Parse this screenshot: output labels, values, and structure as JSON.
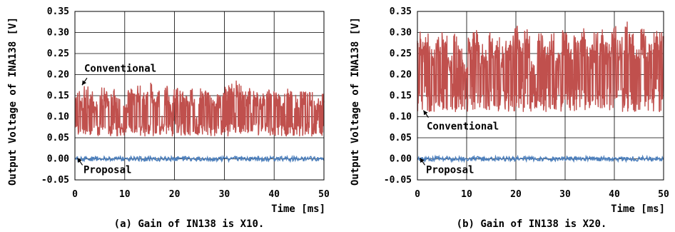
{
  "chart_data": [
    {
      "type": "line",
      "caption": "(a) Gain of IN138 is X10.",
      "xlabel": "Time [ms]",
      "ylabel": "Output Voltage of INA138 [V]",
      "xlim": [
        0,
        50
      ],
      "ylim": [
        -0.05,
        0.35
      ],
      "xticks": [
        "0",
        "10",
        "20",
        "30",
        "40",
        "50"
      ],
      "yticks": [
        "0.35",
        "0.30",
        "0.25",
        "0.20",
        "0.15",
        "0.10",
        "0.05",
        "0.00",
        "-0.05"
      ],
      "grid": true,
      "annotations": [
        "Conventional",
        "Proposal"
      ],
      "series": [
        {
          "name": "Conventional",
          "color": "#c0504d",
          "summary": {
            "baseline": 0.07,
            "min": 0.05,
            "max": 0.185
          },
          "peaks": [
            [
              0.4,
              0.17
            ],
            [
              1.5,
              0.15
            ],
            [
              2.1,
              0.175
            ],
            [
              3.2,
              0.16
            ],
            [
              4.0,
              0.14
            ],
            [
              5.6,
              0.17
            ],
            [
              6.3,
              0.16
            ],
            [
              7.8,
              0.165
            ],
            [
              8.5,
              0.15
            ],
            [
              10.2,
              0.13
            ],
            [
              11.1,
              0.17
            ],
            [
              11.9,
              0.16
            ],
            [
              12.6,
              0.175
            ],
            [
              14.1,
              0.16
            ],
            [
              15.7,
              0.18
            ],
            [
              16.4,
              0.165
            ],
            [
              18.5,
              0.175
            ],
            [
              19.3,
              0.14
            ],
            [
              20.2,
              0.17
            ],
            [
              21.6,
              0.165
            ],
            [
              22.8,
              0.155
            ],
            [
              23.5,
              0.17
            ],
            [
              25.4,
              0.17
            ],
            [
              26.6,
              0.165
            ],
            [
              27.9,
              0.15
            ],
            [
              28.8,
              0.16
            ],
            [
              30.2,
              0.17
            ],
            [
              31.4,
              0.18
            ],
            [
              32.9,
              0.185
            ],
            [
              34.0,
              0.16
            ],
            [
              34.7,
              0.17
            ],
            [
              36.3,
              0.165
            ],
            [
              37.6,
              0.155
            ],
            [
              38.9,
              0.17
            ],
            [
              40.4,
              0.16
            ],
            [
              41.6,
              0.155
            ],
            [
              43.1,
              0.17
            ],
            [
              44.5,
              0.155
            ],
            [
              45.8,
              0.16
            ],
            [
              47.2,
              0.165
            ],
            [
              48.6,
              0.145
            ],
            [
              49.8,
              0.17
            ]
          ]
        },
        {
          "name": "Proposal",
          "color": "#4f81bd",
          "summary": {
            "baseline": 0.0,
            "min": -0.005,
            "max": 0.006
          }
        }
      ]
    },
    {
      "type": "line",
      "caption": "(b) Gain of IN138 is X20.",
      "xlabel": "Time [ms]",
      "ylabel": "Output Voltage of INA138 [V]",
      "xlim": [
        0,
        50
      ],
      "ylim": [
        -0.05,
        0.35
      ],
      "xticks": [
        "0",
        "10",
        "20",
        "30",
        "40",
        "50"
      ],
      "yticks": [
        "0.35",
        "0.30",
        "0.25",
        "0.20",
        "0.15",
        "0.10",
        "0.05",
        "0.00",
        "-0.05"
      ],
      "grid": true,
      "annotations": [
        "Conventional",
        "Proposal"
      ],
      "series": [
        {
          "name": "Conventional",
          "color": "#c0504d",
          "summary": {
            "baseline": 0.14,
            "min": 0.105,
            "max": 0.325
          },
          "peaks": [
            [
              0.3,
              0.31
            ],
            [
              1.2,
              0.28
            ],
            [
              2.0,
              0.3
            ],
            [
              3.1,
              0.27
            ],
            [
              4.2,
              0.29
            ],
            [
              5.5,
              0.3
            ],
            [
              6.6,
              0.25
            ],
            [
              7.4,
              0.31
            ],
            [
              8.7,
              0.27
            ],
            [
              9.6,
              0.23
            ],
            [
              10.8,
              0.29
            ],
            [
              11.7,
              0.31
            ],
            [
              12.9,
              0.28
            ],
            [
              13.8,
              0.26
            ],
            [
              15.0,
              0.3
            ],
            [
              16.2,
              0.31
            ],
            [
              17.5,
              0.28
            ],
            [
              18.6,
              0.3
            ],
            [
              19.9,
              0.32
            ],
            [
              21.0,
              0.29
            ],
            [
              22.3,
              0.31
            ],
            [
              23.5,
              0.24
            ],
            [
              24.9,
              0.3
            ],
            [
              26.1,
              0.27
            ],
            [
              27.2,
              0.3
            ],
            [
              28.6,
              0.26
            ],
            [
              29.8,
              0.31
            ],
            [
              31.0,
              0.28
            ],
            [
              32.3,
              0.3
            ],
            [
              33.6,
              0.32
            ],
            [
              34.9,
              0.27
            ],
            [
              36.1,
              0.3
            ],
            [
              37.4,
              0.31
            ],
            [
              38.7,
              0.28
            ],
            [
              39.8,
              0.32
            ],
            [
              41.1,
              0.31
            ],
            [
              42.3,
              0.325
            ],
            [
              43.4,
              0.3
            ],
            [
              44.6,
              0.26
            ],
            [
              45.9,
              0.31
            ],
            [
              47.1,
              0.28
            ],
            [
              48.4,
              0.31
            ],
            [
              49.6,
              0.3
            ]
          ]
        },
        {
          "name": "Proposal",
          "color": "#4f81bd",
          "summary": {
            "baseline": 0.0,
            "min": -0.005,
            "max": 0.006
          }
        }
      ]
    }
  ]
}
